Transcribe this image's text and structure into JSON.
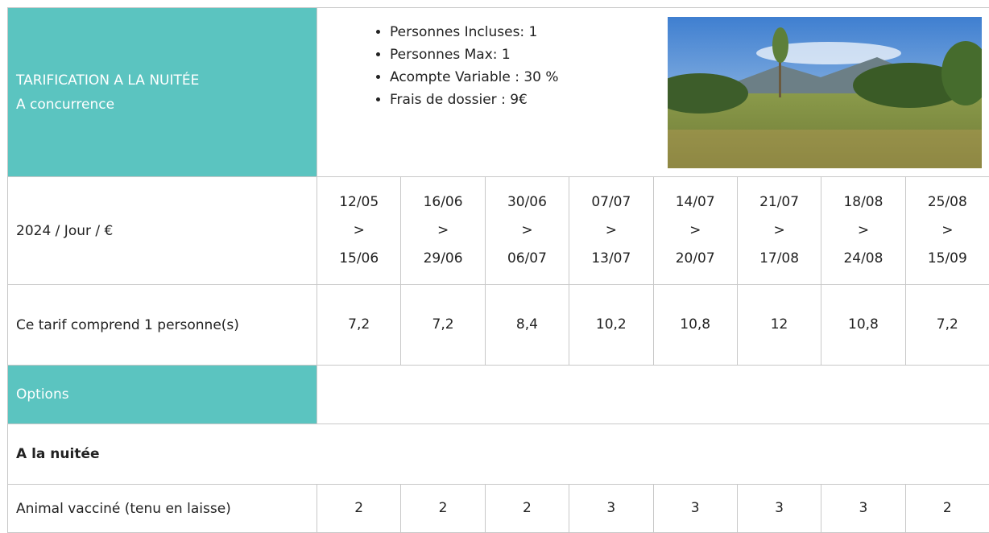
{
  "header": {
    "title": "TARIFICATION A LA NUITÉE",
    "subtitle": "A concurrence",
    "details": [
      "Personnes Incluses: 1",
      "Personnes Max: 1",
      "Acompte Variable : 30 %",
      "Frais de dossier : 9€"
    ]
  },
  "table": {
    "period_label": "2024 / Jour / €",
    "separator": ">",
    "periods": [
      {
        "from": "12/05",
        "to": "15/06"
      },
      {
        "from": "16/06",
        "to": "29/06"
      },
      {
        "from": "30/06",
        "to": "06/07"
      },
      {
        "from": "07/07",
        "to": "13/07"
      },
      {
        "from": "14/07",
        "to": "20/07"
      },
      {
        "from": "21/07",
        "to": "17/08"
      },
      {
        "from": "18/08",
        "to": "24/08"
      },
      {
        "from": "25/08",
        "to": "15/09"
      }
    ],
    "rate_row": {
      "label": "Ce tarif comprend 1 personne(s)",
      "values": [
        "7,2",
        "7,2",
        "8,4",
        "10,2",
        "10,8",
        "12",
        "10,8",
        "7,2"
      ]
    },
    "options_label": "Options",
    "section": "A la nuitée",
    "option_row": {
      "label": "Animal vacciné (tenu en laisse)",
      "values": [
        2,
        2,
        2,
        3,
        3,
        3,
        3,
        2
      ]
    }
  }
}
